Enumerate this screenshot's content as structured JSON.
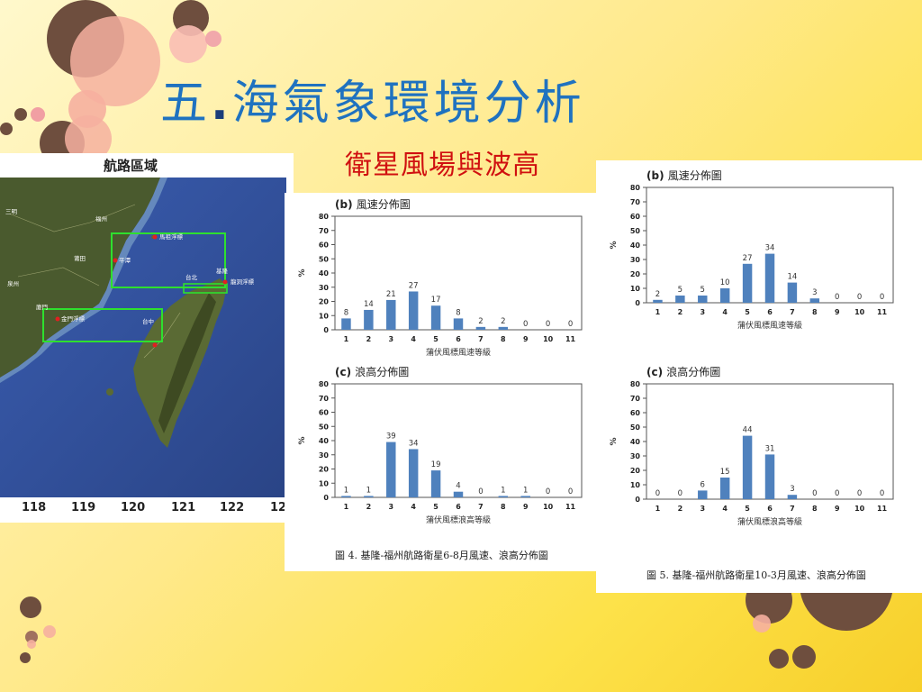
{
  "slide": {
    "title_main": "五",
    "title_dot": ".",
    "title_rest": "海氣象環境分析",
    "subtitle": "衛星風場與波高"
  },
  "map": {
    "title": "航路區域",
    "longitude_labels": [
      "118",
      "119",
      "120",
      "121",
      "122",
      "12"
    ],
    "place_labels": {
      "mazu": "馬祖浮標",
      "fuzhou": "福州",
      "pingtan": "平潭",
      "keelung": "基隆",
      "taipei": "台北",
      "longdong": "龍洞浮標",
      "kinmen": "金門浮標",
      "xiamen": "廈門",
      "taichung": "台中",
      "sanming": "三明",
      "putian": "莆田",
      "quanzhou": "泉州"
    }
  },
  "figures": [
    {
      "caption": "圖 4. 基隆-福州航路衛星6-8月風速、浪高分佈圖",
      "charts": [
        {
          "panel": "(b)",
          "title": "風速分佈圖",
          "xlabel": "蒲伏風標風速等級"
        },
        {
          "panel": "(c)",
          "title": "浪高分佈圖",
          "xlabel": "蒲伏風標浪高等級"
        }
      ]
    },
    {
      "caption": "圖 5. 基隆-福州航路衛星10-3月風速、浪高分佈圖",
      "charts": [
        {
          "panel": "(b)",
          "title": "風速分佈圖",
          "xlabel": "蒲伏風標風速等級"
        },
        {
          "panel": "(c)",
          "title": "浪高分佈圖",
          "xlabel": "蒲伏風標浪高等級"
        }
      ]
    }
  ],
  "chart_data": [
    {
      "type": "bar",
      "title": "(b) 風速分佈圖",
      "xlabel": "蒲伏風標風速等級",
      "ylabel": "%",
      "ylim": [
        0,
        80
      ],
      "yticks": [
        0,
        10,
        20,
        30,
        40,
        50,
        60,
        70,
        80
      ],
      "categories": [
        "1",
        "2",
        "3",
        "4",
        "5",
        "6",
        "7",
        "8",
        "9",
        "10",
        "11"
      ],
      "values": [
        8,
        14,
        21,
        27,
        17,
        8,
        2,
        2,
        0,
        0,
        0
      ],
      "color": "#4f81bd",
      "grid": false
    },
    {
      "type": "bar",
      "title": "(c) 浪高分佈圖",
      "xlabel": "蒲伏風標浪高等級",
      "ylabel": "%",
      "ylim": [
        0,
        80
      ],
      "yticks": [
        0,
        10,
        20,
        30,
        40,
        50,
        60,
        70,
        80
      ],
      "categories": [
        "1",
        "2",
        "3",
        "4",
        "5",
        "6",
        "7",
        "8",
        "9",
        "10",
        "11"
      ],
      "values": [
        1,
        1,
        39,
        34,
        19,
        4,
        0,
        1,
        1,
        0,
        0
      ],
      "color": "#4f81bd",
      "grid": false
    },
    {
      "type": "bar",
      "title": "(b) 風速分佈圖",
      "xlabel": "蒲伏風標風速等級",
      "ylabel": "%",
      "ylim": [
        0,
        80
      ],
      "yticks": [
        0,
        10,
        20,
        30,
        40,
        50,
        60,
        70,
        80
      ],
      "categories": [
        "1",
        "2",
        "3",
        "4",
        "5",
        "6",
        "7",
        "8",
        "9",
        "10",
        "11"
      ],
      "values": [
        2,
        5,
        5,
        10,
        27,
        34,
        14,
        3,
        0,
        0,
        0
      ],
      "color": "#4f81bd",
      "grid": false
    },
    {
      "type": "bar",
      "title": "(c) 浪高分佈圖",
      "xlabel": "蒲伏風標浪高等級",
      "ylabel": "%",
      "ylim": [
        0,
        80
      ],
      "yticks": [
        0,
        10,
        20,
        30,
        40,
        50,
        60,
        70,
        80
      ],
      "categories": [
        "1",
        "2",
        "3",
        "4",
        "5",
        "6",
        "7",
        "8",
        "9",
        "10",
        "11"
      ],
      "values": [
        0,
        0,
        6,
        15,
        44,
        31,
        3,
        0,
        0,
        0,
        0
      ],
      "color": "#4f81bd",
      "grid": false
    }
  ]
}
